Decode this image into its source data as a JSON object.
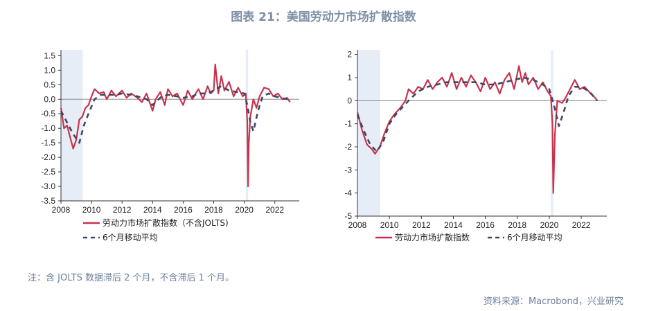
{
  "title": "图表 21：美国劳动力市场扩散指数",
  "note": "注：含 JOLTS 数据滞后 2 个月，不含滞后 1 个月。",
  "source": "资料来源：Macrobond，兴业研究",
  "colors": {
    "main": "#c8334a",
    "ma": "#3b4766",
    "recession": "#e6edf7",
    "zero": "#888888"
  },
  "chart_data": [
    {
      "type": "line",
      "x_ticks": [
        "2008",
        "2010",
        "2012",
        "2014",
        "2016",
        "2018",
        "2020",
        "2022"
      ],
      "y_ticks": [
        "1.5",
        "1.0",
        "0.5",
        "0.0",
        "-0.5",
        "-1.0",
        "-1.5",
        "-2.0",
        "-2.5",
        "-3.0",
        "-3.5"
      ],
      "xlim": [
        2008,
        2023.6
      ],
      "ylim": [
        -3.5,
        1.7
      ],
      "recessions": [
        [
          2008.0,
          2009.42
        ],
        [
          2020.1,
          2020.25
        ]
      ],
      "legend": [
        "劳动力市场扩散指数（不含JOLTS)",
        "6个月移动平均"
      ],
      "series": [
        {
          "name": "劳动力市场扩散指数（不含JOLTS)",
          "style": "solid",
          "x": [
            2008.0,
            2008.2,
            2008.4,
            2008.6,
            2008.8,
            2009.0,
            2009.2,
            2009.4,
            2009.6,
            2009.8,
            2010.0,
            2010.2,
            2010.5,
            2010.8,
            2011.0,
            2011.3,
            2011.6,
            2012.0,
            2012.3,
            2012.6,
            2013.0,
            2013.3,
            2013.6,
            2014.0,
            2014.2,
            2014.5,
            2014.8,
            2015.0,
            2015.3,
            2015.6,
            2016.0,
            2016.3,
            2016.6,
            2017.0,
            2017.3,
            2017.6,
            2017.8,
            2018.0,
            2018.1,
            2018.3,
            2018.5,
            2018.7,
            2019.0,
            2019.3,
            2019.6,
            2019.9,
            2020.1,
            2020.2,
            2020.25,
            2020.3,
            2020.4,
            2020.6,
            2020.8,
            2021.0,
            2021.3,
            2021.6,
            2021.9,
            2022.2,
            2022.5,
            2022.8,
            2023.0
          ],
          "y": [
            -0.3,
            -1.0,
            -0.9,
            -1.3,
            -1.7,
            -1.4,
            -0.7,
            -0.6,
            -0.3,
            -0.2,
            0.1,
            0.35,
            0.2,
            0.25,
            0.0,
            0.3,
            0.1,
            0.3,
            0.05,
            0.2,
            0.05,
            -0.1,
            0.2,
            -0.4,
            0.0,
            0.25,
            -0.2,
            0.35,
            0.1,
            0.2,
            -0.2,
            0.3,
            0.0,
            0.35,
            0.0,
            0.45,
            0.2,
            0.3,
            1.2,
            0.2,
            0.8,
            0.3,
            0.6,
            0.1,
            0.4,
            0.1,
            0.2,
            -0.8,
            -3.0,
            -1.5,
            -0.6,
            0.0,
            -0.3,
            0.1,
            0.4,
            0.35,
            0.1,
            0.2,
            0.0,
            0.05,
            -0.1
          ]
        },
        {
          "name": "6个月移动平均",
          "style": "dashed",
          "x": [
            2008.0,
            2008.4,
            2008.8,
            2009.2,
            2009.5,
            2009.8,
            2010.2,
            2010.6,
            2011.0,
            2011.6,
            2012.0,
            2012.6,
            2013.0,
            2013.6,
            2014.0,
            2014.6,
            2015.0,
            2015.6,
            2016.0,
            2016.6,
            2017.0,
            2017.6,
            2018.0,
            2018.5,
            2019.0,
            2019.5,
            2020.0,
            2020.2,
            2020.4,
            2020.6,
            2020.9,
            2021.2,
            2021.6,
            2022.0,
            2022.4,
            2022.8,
            2023.0
          ],
          "y": [
            -0.4,
            -0.8,
            -1.2,
            -1.5,
            -0.9,
            -0.5,
            0.0,
            0.15,
            0.15,
            0.15,
            0.2,
            0.15,
            0.1,
            0.0,
            -0.2,
            0.1,
            0.15,
            0.1,
            0.05,
            0.1,
            0.2,
            0.2,
            0.3,
            0.45,
            0.3,
            0.25,
            0.2,
            -0.2,
            -0.8,
            -1.1,
            -0.4,
            0.1,
            0.2,
            0.1,
            0.05,
            0.0,
            -0.1
          ]
        }
      ]
    },
    {
      "type": "line",
      "x_ticks": [
        "2008",
        "2010",
        "2012",
        "2014",
        "2016",
        "2018",
        "2020",
        "2022"
      ],
      "y_ticks": [
        "2",
        "1",
        "0",
        "-1",
        "-2",
        "-3",
        "-4",
        "-5"
      ],
      "xlim": [
        2008,
        2023.6
      ],
      "ylim": [
        -5,
        2.2
      ],
      "recessions": [
        [
          2008.0,
          2009.42
        ],
        [
          2020.1,
          2020.25
        ]
      ],
      "legend": [
        "劳动力市场扩散指数",
        "6个月移动平均"
      ],
      "series": [
        {
          "name": "劳动力市场扩散指数",
          "style": "solid",
          "x": [
            2008.0,
            2008.3,
            2008.6,
            2008.9,
            2009.1,
            2009.4,
            2009.7,
            2010.0,
            2010.3,
            2010.7,
            2011.0,
            2011.2,
            2011.5,
            2011.8,
            2012.1,
            2012.4,
            2012.7,
            2013.0,
            2013.3,
            2013.6,
            2013.9,
            2014.2,
            2014.5,
            2014.8,
            2015.1,
            2015.4,
            2015.7,
            2016.0,
            2016.3,
            2016.6,
            2016.9,
            2017.2,
            2017.5,
            2017.8,
            2018.1,
            2018.3,
            2018.5,
            2018.7,
            2019.0,
            2019.3,
            2019.6,
            2019.9,
            2020.1,
            2020.2,
            2020.25,
            2020.35,
            2020.5,
            2020.8,
            2021.0,
            2021.3,
            2021.6,
            2021.9,
            2022.2,
            2022.6,
            2022.9,
            2023.0
          ],
          "y": [
            -0.5,
            -1.3,
            -1.9,
            -2.1,
            -2.3,
            -2.0,
            -1.4,
            -0.9,
            -0.6,
            -0.3,
            0.0,
            0.5,
            0.3,
            0.6,
            0.5,
            0.9,
            0.5,
            0.8,
            1.0,
            0.6,
            1.2,
            0.5,
            1.0,
            0.6,
            1.1,
            0.8,
            0.4,
            1.0,
            0.5,
            0.8,
            0.3,
            0.9,
            1.2,
            0.5,
            1.5,
            0.8,
            1.2,
            0.7,
            1.0,
            0.5,
            0.8,
            0.4,
            0.2,
            -1.0,
            -4.0,
            -1.5,
            0.0,
            -0.1,
            0.1,
            0.5,
            0.9,
            0.5,
            0.6,
            0.3,
            0.1,
            0.0
          ]
        },
        {
          "name": "6个月移动平均",
          "style": "dashed",
          "x": [
            2008.0,
            2008.4,
            2008.8,
            2009.2,
            2009.6,
            2010.0,
            2010.4,
            2010.8,
            2011.2,
            2011.8,
            2012.4,
            2013.0,
            2013.6,
            2014.2,
            2014.8,
            2015.4,
            2016.0,
            2016.6,
            2017.2,
            2017.8,
            2018.4,
            2019.0,
            2019.6,
            2020.0,
            2020.3,
            2020.6,
            2020.9,
            2021.2,
            2021.6,
            2022.0,
            2022.5,
            2023.0
          ],
          "y": [
            -0.6,
            -1.3,
            -1.9,
            -2.2,
            -1.8,
            -1.0,
            -0.6,
            -0.3,
            0.0,
            0.4,
            0.6,
            0.7,
            0.8,
            0.8,
            0.8,
            0.8,
            0.7,
            0.7,
            0.8,
            0.9,
            1.0,
            0.9,
            0.7,
            0.5,
            -0.2,
            -1.1,
            -0.5,
            0.2,
            0.6,
            0.6,
            0.4,
            0.0
          ]
        }
      ]
    }
  ]
}
